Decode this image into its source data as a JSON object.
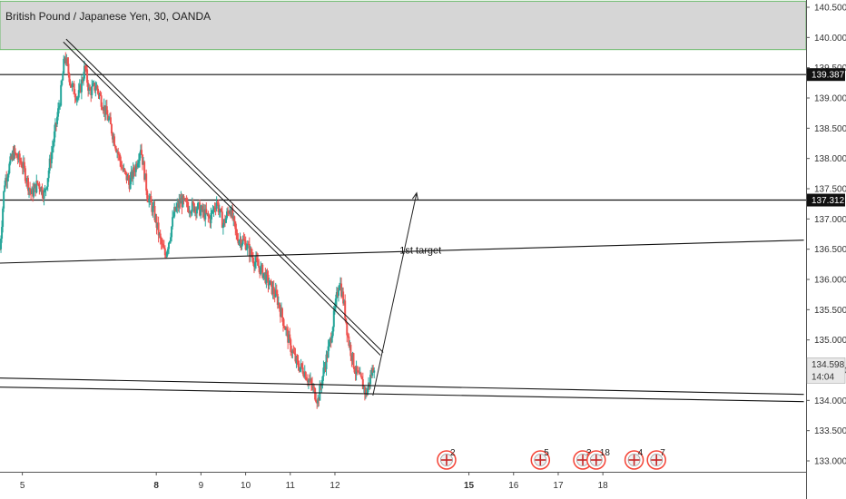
{
  "chart_data": {
    "type": "candlestick",
    "title": "British Pound / Japanese Yen, 30, OANDA",
    "ylim": [
      132.82,
      140.62
    ],
    "yticks": [
      "140.500",
      "140.000",
      "139.500",
      "139.000",
      "138.500",
      "138.000",
      "137.500",
      "137.000",
      "136.500",
      "136.000",
      "135.500",
      "135.000",
      "134.500",
      "134.000",
      "133.500",
      "133.000"
    ],
    "xticks": [
      {
        "label": "5",
        "day": 5,
        "major": false
      },
      {
        "label": "8",
        "day": 8,
        "major": true
      },
      {
        "label": "9",
        "day": 9,
        "major": false
      },
      {
        "label": "10",
        "day": 10,
        "major": false
      },
      {
        "label": "11",
        "day": 11,
        "major": false
      },
      {
        "label": "12",
        "day": 12,
        "major": false
      },
      {
        "label": "15",
        "day": 15,
        "major": true
      },
      {
        "label": "16",
        "day": 16,
        "major": false
      },
      {
        "label": "17",
        "day": 17,
        "major": false
      },
      {
        "label": "18",
        "day": 18,
        "major": false
      }
    ],
    "xlim": [
      4.5,
      22.55
    ],
    "zones": [
      {
        "from": 139.8,
        "to": 140.6,
        "color": "#cfcfcf",
        "border": "#6dbb6d"
      }
    ],
    "horizontal_lines": [
      {
        "price": 139.387,
        "label": "139.387"
      },
      {
        "price": 137.312,
        "label": "137.312"
      }
    ],
    "trendlines": [
      {
        "from": [
          5.95,
          139.95
        ],
        "to": [
          13.05,
          134.77
        ],
        "double": true
      },
      {
        "from": [
          4.5,
          136.27
        ],
        "to": [
          22.5,
          136.65
        ],
        "double": false
      },
      {
        "from": [
          4.5,
          134.37
        ],
        "to": [
          22.5,
          134.1
        ],
        "double": false
      },
      {
        "from": [
          4.5,
          134.22
        ],
        "to": [
          22.5,
          133.98
        ],
        "double": false
      }
    ],
    "arrow": {
      "from": [
        12.85,
        134.08
      ],
      "to": [
        13.83,
        137.43
      ]
    },
    "annotations": [
      {
        "text": "1st target",
        "x": 13.45,
        "y": 136.43
      }
    ],
    "last_price": {
      "value": "134.598",
      "countdown": "14:04"
    },
    "price_path": [
      [
        4.5,
        136.5
      ],
      [
        4.6,
        137.6
      ],
      [
        4.8,
        138.1
      ],
      [
        5.0,
        137.9
      ],
      [
        5.2,
        137.4
      ],
      [
        5.35,
        137.6
      ],
      [
        5.5,
        137.4
      ],
      [
        5.7,
        138.3
      ],
      [
        5.85,
        139.0
      ],
      [
        5.95,
        139.7
      ],
      [
        6.1,
        139.2
      ],
      [
        6.25,
        139.0
      ],
      [
        6.4,
        139.5
      ],
      [
        6.5,
        139.1
      ],
      [
        6.65,
        139.2
      ],
      [
        6.8,
        138.9
      ],
      [
        6.95,
        138.6
      ],
      [
        7.1,
        138.2
      ],
      [
        7.25,
        137.8
      ],
      [
        7.4,
        137.6
      ],
      [
        7.55,
        137.9
      ],
      [
        7.65,
        138.2
      ],
      [
        7.8,
        137.4
      ],
      [
        7.95,
        137.1
      ],
      [
        8.1,
        136.6
      ],
      [
        8.2,
        136.4
      ],
      [
        8.3,
        136.7
      ],
      [
        8.4,
        137.1
      ],
      [
        8.55,
        137.3
      ],
      [
        8.7,
        137.2
      ],
      [
        8.9,
        137.2
      ],
      [
        9.05,
        137.1
      ],
      [
        9.2,
        137.0
      ],
      [
        9.35,
        137.3
      ],
      [
        9.5,
        136.9
      ],
      [
        9.65,
        137.2
      ],
      [
        9.8,
        136.7
      ],
      [
        10.0,
        136.6
      ],
      [
        10.2,
        136.3
      ],
      [
        10.4,
        136.1
      ],
      [
        10.55,
        135.9
      ],
      [
        10.7,
        135.7
      ],
      [
        10.85,
        135.3
      ],
      [
        11.0,
        134.9
      ],
      [
        11.15,
        134.6
      ],
      [
        11.3,
        134.5
      ],
      [
        11.5,
        134.2
      ],
      [
        11.62,
        134.0
      ],
      [
        11.75,
        134.5
      ],
      [
        11.9,
        135.0
      ],
      [
        12.0,
        135.5
      ],
      [
        12.1,
        136.0
      ],
      [
        12.2,
        135.6
      ],
      [
        12.3,
        135.0
      ],
      [
        12.45,
        134.5
      ],
      [
        12.6,
        134.3
      ],
      [
        12.7,
        134.1
      ],
      [
        12.8,
        134.4
      ],
      [
        12.88,
        134.6
      ]
    ],
    "events": [
      {
        "day": 14.5,
        "count": "2"
      },
      {
        "day": 16.6,
        "count": "5"
      },
      {
        "day": 17.55,
        "count": "3"
      },
      {
        "day": 17.85,
        "count": "18"
      },
      {
        "day": 18.7,
        "count": "4"
      },
      {
        "day": 19.2,
        "count": "7"
      }
    ],
    "colors": {
      "up": "#26a69a",
      "down": "#ef5350",
      "line": "#111111",
      "zone": "#cfcfcf",
      "zone_border": "#6dbb6d",
      "event": "#f44336",
      "axis_bg": "#ffffff"
    }
  }
}
